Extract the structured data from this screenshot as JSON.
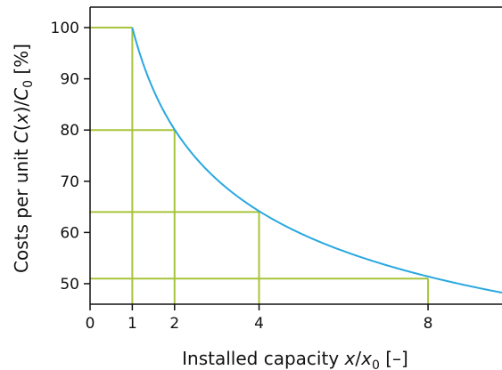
{
  "chart_data": {
    "type": "line",
    "xlabel_parts": {
      "pre": "Installed capacity ",
      "var": "x",
      "sep": "/",
      "var2": "x",
      "sub": "0",
      "post": " [–]"
    },
    "ylabel_parts": {
      "pre": "Costs per unit ",
      "f": "C",
      "open": "(",
      "var": "x",
      "close": ")/",
      "f2": "C",
      "sub": "0",
      "post": " [%]"
    },
    "xlim": [
      0,
      9.75
    ],
    "ylim": [
      46,
      104
    ],
    "x_ticks": [
      0,
      1,
      2,
      4,
      8
    ],
    "x_tick_labels": [
      "0",
      "1",
      "2",
      "4",
      "8"
    ],
    "y_ticks": [
      50,
      60,
      70,
      80,
      90,
      100
    ],
    "y_tick_labels": [
      "50",
      "60",
      "70",
      "80",
      "90",
      "100"
    ],
    "curve": {
      "formula": "100 * x^(-0.32)",
      "x_start": 1,
      "x_end": 9.75,
      "color": "#29a8e0"
    },
    "highlight_points": [
      {
        "x": 1,
        "y": 100
      },
      {
        "x": 2,
        "y": 80
      },
      {
        "x": 4,
        "y": 64
      },
      {
        "x": 8,
        "y": 51
      }
    ],
    "guide_color": "#a8c43a",
    "grid": false
  }
}
